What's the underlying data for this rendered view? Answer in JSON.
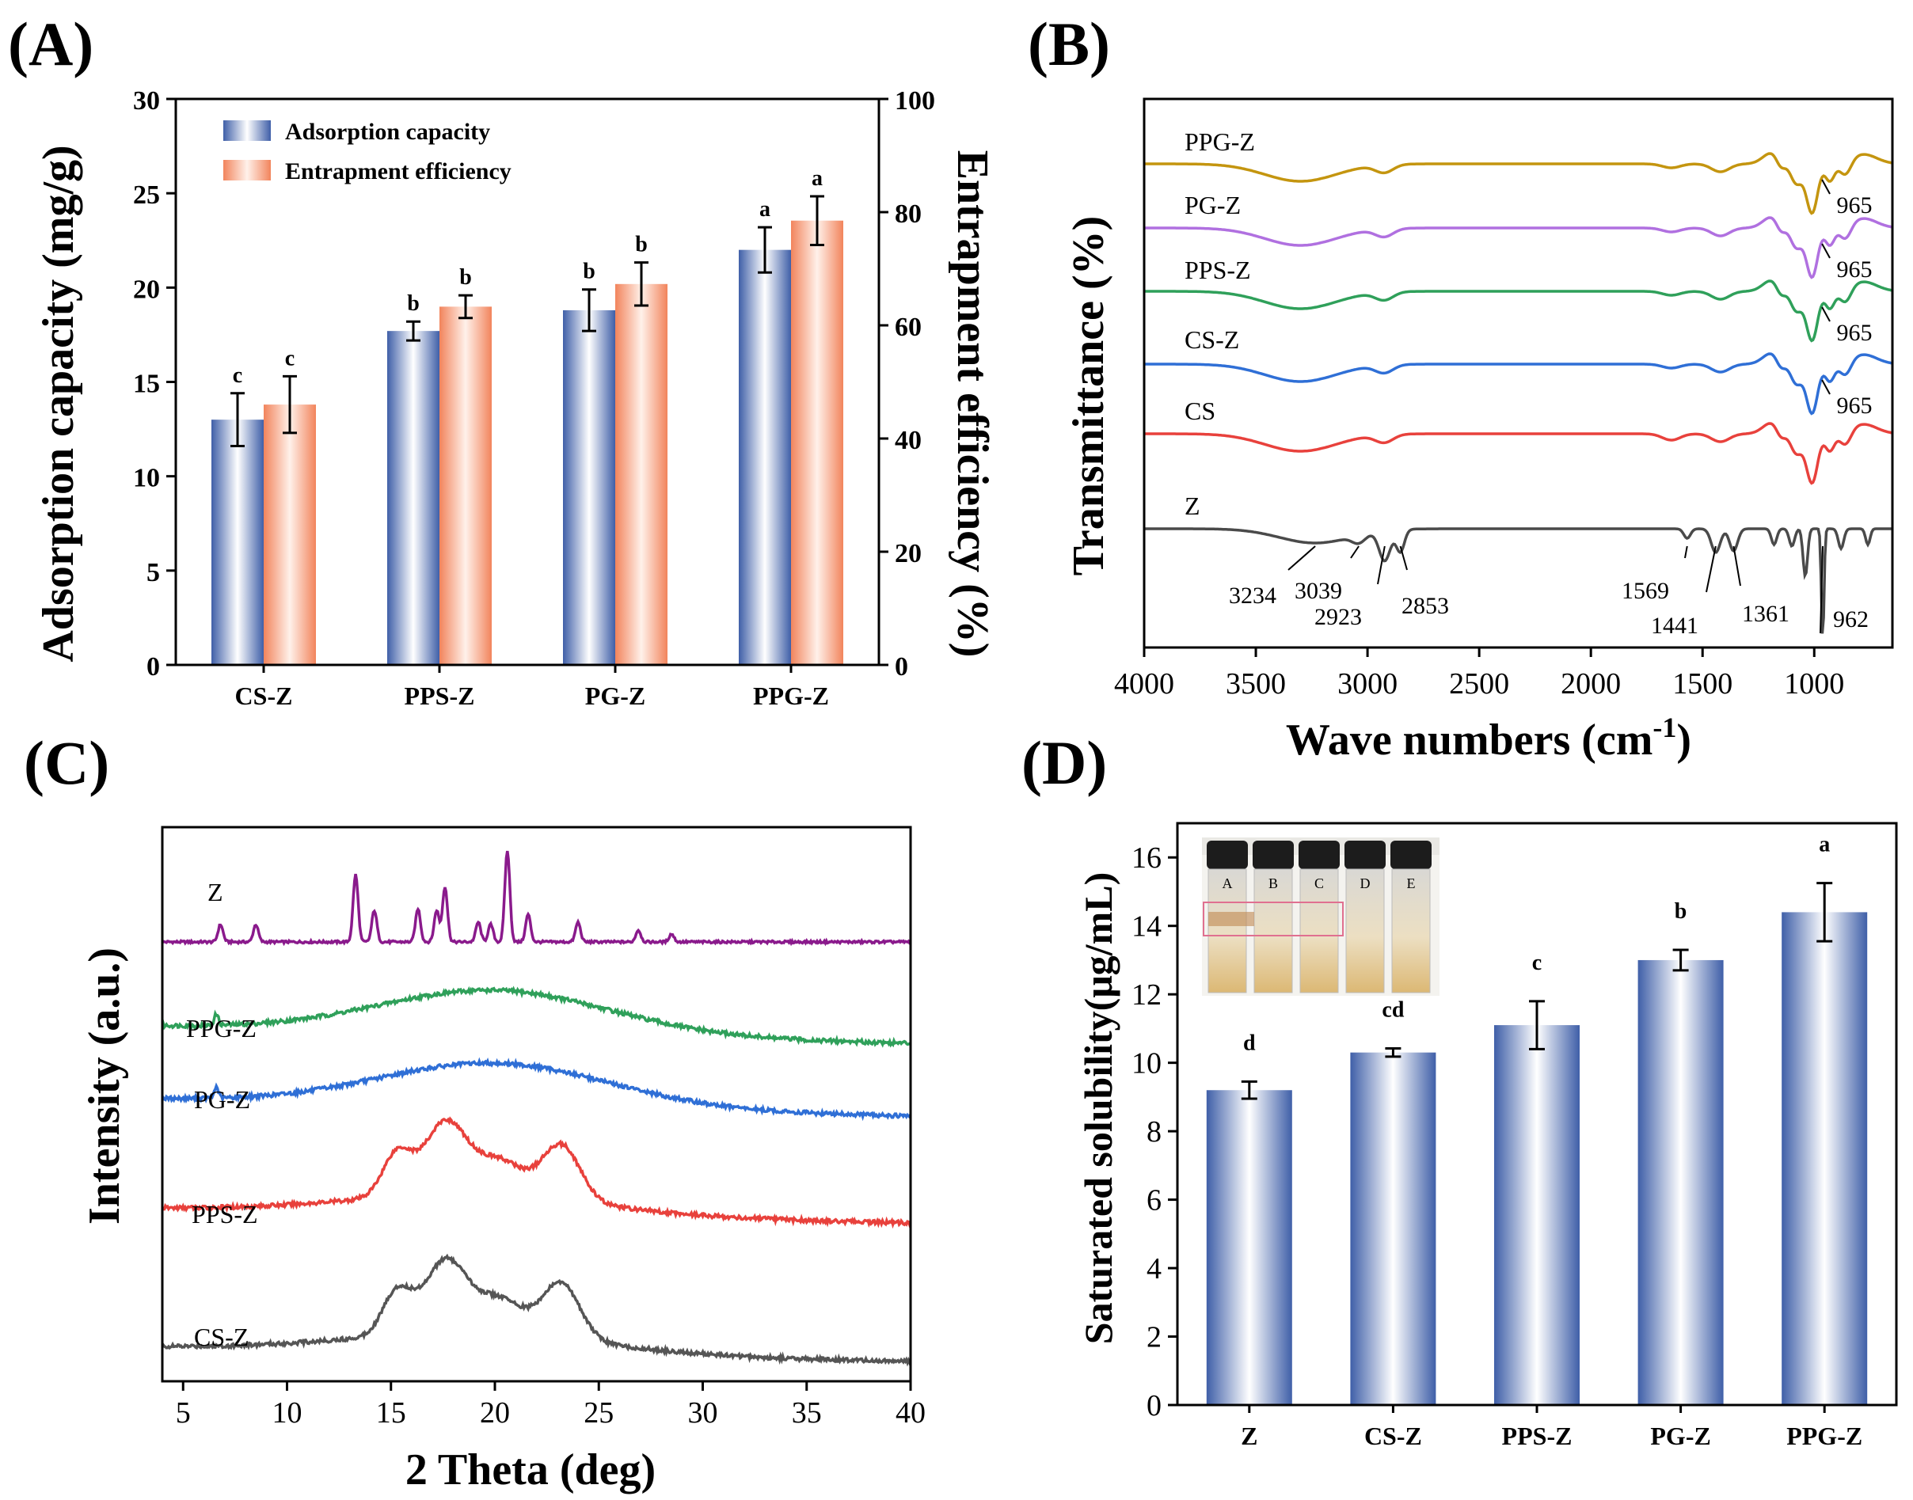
{
  "colors": {
    "blue_bar_edge": "#3f5fa8",
    "blue_bar_mid": "#ffffff",
    "orange_bar_edge": "#f2845c",
    "ftir": {
      "Z": "#4a4a4a",
      "CS": "#e8413c",
      "CS-Z": "#2f6fd6",
      "PPS-Z": "#2fa05a",
      "PG-Z": "#b070e0",
      "PPG-Z": "#c4950f"
    },
    "xrd": {
      "Z": "#8a1a8c",
      "PPG-Z": "#2fa05a",
      "PG-Z": "#2f6fd6",
      "PPS-Z": "#e8413c",
      "CS-Z": "#555555"
    }
  },
  "chart_data": [
    {
      "panel": "(A)",
      "type": "bar",
      "categories": [
        "CS-Z",
        "PPS-Z",
        "PG-Z",
        "PPG-Z"
      ],
      "series": [
        {
          "name": "Adsorption capacity",
          "axis": "left",
          "values": [
            13.0,
            17.7,
            18.8,
            22.0
          ],
          "errors": [
            1.4,
            0.5,
            1.1,
            1.2
          ],
          "letters": [
            "c",
            "b",
            "b",
            "a"
          ]
        },
        {
          "name": "Entrapment efficiency",
          "axis": "right",
          "values": [
            46,
            63.3,
            67.3,
            78.5
          ],
          "errors": [
            5.0,
            2.0,
            3.8,
            4.3
          ],
          "letters": [
            "c",
            "b",
            "b",
            "a"
          ]
        }
      ],
      "ylabel": "Adsorption capacity (mg/g)",
      "ylabel_right": "Entrapment efficiency (%)",
      "ylim": [
        0,
        30
      ],
      "ylim_right": [
        0,
        100
      ],
      "yticks": [
        "0",
        "5",
        "10",
        "15",
        "20",
        "25",
        "30"
      ],
      "yticks_right": [
        "0",
        "20",
        "40",
        "60",
        "80",
        "100"
      ],
      "legend": "top-left"
    },
    {
      "panel": "(B)",
      "type": "line",
      "xlabel": "Wave numbers (cm",
      "xlabel_sup": "-1",
      "xlabel_close": ")",
      "ylabel": "Transmittance (%)",
      "xlim": [
        4000,
        650
      ],
      "xticks": [
        "4000",
        "3500",
        "3000",
        "2500",
        "2000",
        "1500",
        "1000"
      ],
      "series": [
        {
          "name": "PPG-Z",
          "label": "965"
        },
        {
          "name": "PG-Z",
          "label": "965"
        },
        {
          "name": "PPS-Z",
          "label": "965"
        },
        {
          "name": "CS-Z",
          "label": "965"
        },
        {
          "name": "CS"
        },
        {
          "name": "Z"
        }
      ],
      "peak_labels": [
        "3234",
        "3039",
        "2923",
        "2853",
        "1569",
        "1441",
        "1361",
        "962"
      ]
    },
    {
      "panel": "(C)",
      "type": "line",
      "xlabel": "2 Theta (deg)",
      "ylabel": "Intensity (a.u.)",
      "xlim": [
        4,
        40
      ],
      "xticks": [
        "5",
        "10",
        "15",
        "20",
        "25",
        "30",
        "35",
        "40"
      ],
      "series": [
        {
          "name": "Z",
          "peaks_2theta": [
            6.8,
            8.5,
            13.3,
            14.2,
            16.3,
            17.2,
            17.6,
            19.2,
            19.8,
            20.6,
            21.6,
            24.0,
            26.9,
            28.5
          ]
        },
        {
          "name": "PPG-Z",
          "broad_max_2theta": 20
        },
        {
          "name": "PG-Z",
          "broad_max_2theta": 20
        },
        {
          "name": "PPS-Z",
          "peaks_2theta": [
            15.3,
            17.6,
            20.2,
            23.2
          ]
        },
        {
          "name": "CS-Z",
          "peaks_2theta": [
            15.3,
            17.6,
            20.2,
            23.2
          ]
        }
      ]
    },
    {
      "panel": "(D)",
      "type": "bar",
      "categories": [
        "Z",
        "CS-Z",
        "PPS-Z",
        "PG-Z",
        "PPG-Z"
      ],
      "values": [
        9.2,
        10.3,
        11.1,
        13.0,
        14.4
      ],
      "errors": [
        0.25,
        0.12,
        0.7,
        0.3,
        0.85
      ],
      "letters": [
        "d",
        "cd",
        "c",
        "b",
        "a"
      ],
      "ylabel": "Saturated solubility(μg/mL)",
      "ylim": [
        0,
        17
      ],
      "yticks": [
        "0",
        "2",
        "4",
        "6",
        "8",
        "10",
        "12",
        "14",
        "16"
      ],
      "inset_vial_labels": [
        "A",
        "B",
        "C",
        "D",
        "E"
      ]
    }
  ]
}
